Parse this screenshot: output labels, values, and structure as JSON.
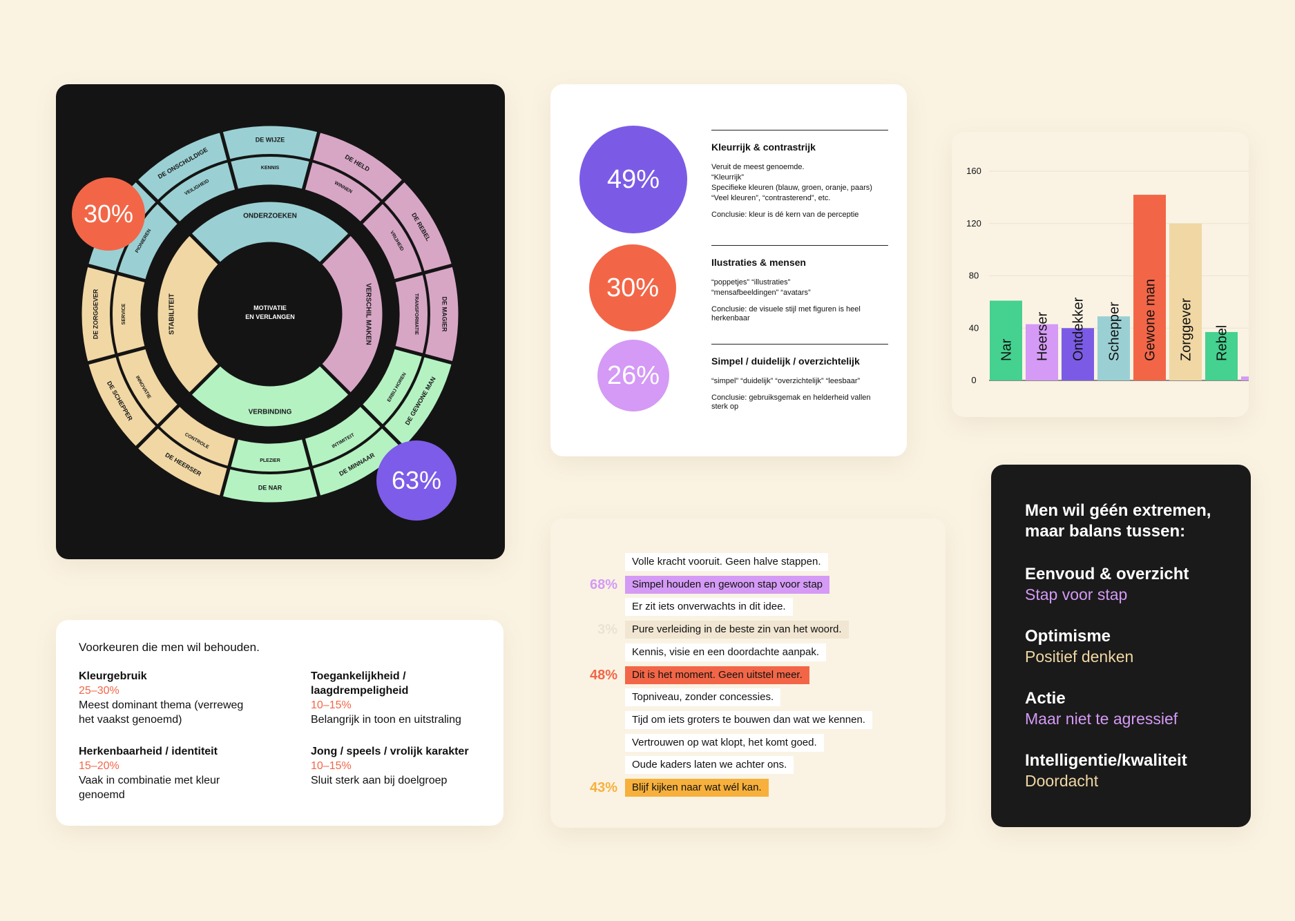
{
  "wheel": {
    "center_line1": "MOTIVATIE",
    "center_line2": "EN VERLANGEN",
    "badge_left": "30%",
    "badge_right": "63%",
    "colors": {
      "teal": "#9ad0d3",
      "pink": "#d7a6c5",
      "green": "#b4f2c2",
      "tan": "#f0d7a4",
      "coral": "#f26647",
      "purple": "#7c5ce8"
    },
    "inner": [
      {
        "label": "ONDERZOEKEN",
        "color": "teal"
      },
      {
        "label": "VERSCHIL MAKEN",
        "color": "pink"
      },
      {
        "label": "VERBINDING",
        "color": "green"
      },
      {
        "label": "STABILITEIT",
        "color": "tan"
      }
    ],
    "segments": [
      {
        "value": "VEILIGHEID",
        "archetype": "DE ONSCHULDIGE",
        "color": "teal"
      },
      {
        "value": "KENNIS",
        "archetype": "DE WIJZE",
        "color": "teal"
      },
      {
        "value": "WINNEN",
        "archetype": "DE HELD",
        "color": "pink"
      },
      {
        "value": "VRIJHEID",
        "archetype": "DE REBEL",
        "color": "pink"
      },
      {
        "value": "TRANSFORMATIE",
        "archetype": "DE MAGIER",
        "color": "pink"
      },
      {
        "value": "ERBIJ HOREN",
        "archetype": "DE GEWONE MAN",
        "color": "green"
      },
      {
        "value": "INTIMITEIT",
        "archetype": "DE MINNAAR",
        "color": "green"
      },
      {
        "value": "PLEZIER",
        "archetype": "DE NAR",
        "color": "green"
      },
      {
        "value": "CONTROLE",
        "archetype": "DE HEERSER",
        "color": "tan"
      },
      {
        "value": "INNOVATIE",
        "archetype": "DE SCHEPPER",
        "color": "tan"
      },
      {
        "value": "SERVICE",
        "archetype": "DE ZORGGEVER",
        "color": "tan"
      },
      {
        "value": "PIONIEREN",
        "archetype": "DE ONTDEKKER",
        "color": "teal"
      }
    ]
  },
  "percentages": {
    "items": [
      {
        "pct": "49%",
        "color": "#7b5be6",
        "title": "Kleurrijk & contrastrijk",
        "lines": "Veruit de meest genoemde.\n“Kleurrijk”\nSpecifieke kleuren (blauw, groen, oranje, paars)\n“Veel kleuren”, “contrasterend”, etc.",
        "conclusion": "Conclusie: kleur is dé kern van de perceptie"
      },
      {
        "pct": "30%",
        "color": "#f26647",
        "title": "Ilustraties & mensen",
        "lines": "“poppetjes” “illustraties”\n“mensafbeeldingen” “avatars”",
        "conclusion": "Conclusie: de visuele stijl met figuren is heel herkenbaar"
      },
      {
        "pct": "26%",
        "color": "#d49af5",
        "title": "Simpel / duidelijk / overzichtelijk",
        "lines": "“simpel” “duidelijk” “overzichtelijk” “leesbaar”",
        "conclusion": "Conclusie: gebruiksgemak en helderheid vallen sterk op"
      }
    ]
  },
  "chart_data": {
    "type": "bar",
    "categories": [
      "Nar",
      "Heerser",
      "Ontdekker",
      "Schepper",
      "Gewone man",
      "Zorggever",
      "Rebel",
      ""
    ],
    "values": [
      61,
      43,
      40,
      49,
      142,
      120,
      37,
      3
    ],
    "colors": [
      "#45d18f",
      "#d49af5",
      "#7b5be6",
      "#9ad0d3",
      "#f26647",
      "#f0d7a4",
      "#45d18f",
      "#d49af5"
    ],
    "ylim": [
      0,
      160
    ],
    "yticks": [
      0,
      40,
      80,
      120,
      160
    ],
    "title": "",
    "xlabel": "",
    "ylabel": "",
    "grid": "horizontal"
  },
  "preferences": {
    "title": "Voorkeuren die men wil behouden.",
    "items": [
      {
        "name": "Kleurgebruik",
        "range": "25–30%",
        "desc": "Meest dominant thema (verreweg het vaakst genoemd)"
      },
      {
        "name": "Toegankelijkheid / laagdrempeligheid",
        "range": "10–15%",
        "desc": "Belangrijk in toon en uitstraling"
      },
      {
        "name": "Herkenbaarheid / identiteit",
        "range": "15–20%",
        "desc": "Vaak in combinatie met kleur genoemd"
      },
      {
        "name": "Jong / speels / vrolijk karakter",
        "range": "10–15%",
        "desc": "Sluit sterk aan bij doelgroep"
      }
    ]
  },
  "statements": {
    "items": [
      {
        "text": "Volle kracht vooruit. Geen halve stappen.",
        "pct": "",
        "bg": "#ffffff",
        "pct_color": ""
      },
      {
        "text": "Simpel houden en gewoon stap voor stap",
        "pct": "68%",
        "bg": "#d49af5",
        "pct_color": "#d49af5"
      },
      {
        "text": "Er zit iets onverwachts in dit idee.",
        "pct": "",
        "bg": "#ffffff",
        "pct_color": ""
      },
      {
        "text": "Pure verleiding in de beste zin van het woord.",
        "pct": "3%",
        "bg": "#f0e6d2",
        "pct_color": "#ebe2d0"
      },
      {
        "text": "Kennis, visie en een doordachte aanpak.",
        "pct": "",
        "bg": "#ffffff",
        "pct_color": ""
      },
      {
        "text": "Dit is het moment. Geen uitstel meer.",
        "pct": "48%",
        "bg": "#f26647",
        "pct_color": "#f26647"
      },
      {
        "text": "Topniveau, zonder concessies.",
        "pct": "",
        "bg": "#ffffff",
        "pct_color": ""
      },
      {
        "text": "Tijd om iets groters te bouwen dan wat we kennen.",
        "pct": "",
        "bg": "#ffffff",
        "pct_color": ""
      },
      {
        "text": "Vertrouwen op wat klopt, het komt goed.",
        "pct": "",
        "bg": "#ffffff",
        "pct_color": ""
      },
      {
        "text": "Oude kaders laten we achter ons.",
        "pct": "",
        "bg": "#ffffff",
        "pct_color": ""
      },
      {
        "text": "Blijf kijken naar wat wél kan.",
        "pct": "43%",
        "bg": "#f7b03c",
        "pct_color": "#f7b03c"
      }
    ]
  },
  "balance": {
    "title": "Men wil géén extremen, maar balans tussen:",
    "items": [
      {
        "head": "Eenvoud & overzicht",
        "sub": "Stap voor stap",
        "color": "#d49af5"
      },
      {
        "head": "Optimisme",
        "sub": "Positief denken",
        "color": "#f0d7a4"
      },
      {
        "head": "Actie",
        "sub": "Maar niet te agressief",
        "color": "#d49af5"
      },
      {
        "head": "Intelligentie/kwaliteit",
        "sub": "Doordacht",
        "color": "#f0d7a4"
      }
    ]
  }
}
